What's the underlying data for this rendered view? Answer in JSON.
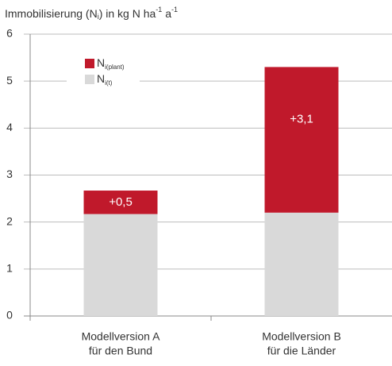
{
  "chart_data": {
    "type": "stacked_bar",
    "title": {
      "main": "Immobilisierung (N",
      "sub": "i",
      "mid": ") in kg N ha",
      "sup1": "-1",
      "end": " a",
      "sup2": "-1"
    },
    "categories": [
      [
        "Modellversion A",
        "für den Bund"
      ],
      [
        "Modellversion B",
        "für die Länder"
      ]
    ],
    "series": [
      {
        "name": "N",
        "name_sub": "i(t)",
        "color": "#d9d9d9",
        "values": [
          2.17,
          2.2
        ]
      },
      {
        "name": "N",
        "name_sub": "i(plant)",
        "color": "#c0192b",
        "values": [
          0.5,
          3.1
        ],
        "value_labels": [
          "+0,5",
          "+3,1"
        ]
      }
    ],
    "ylim": [
      0,
      6
    ],
    "yticks": [
      0,
      1,
      2,
      3,
      4,
      5,
      6
    ],
    "grid": true
  }
}
